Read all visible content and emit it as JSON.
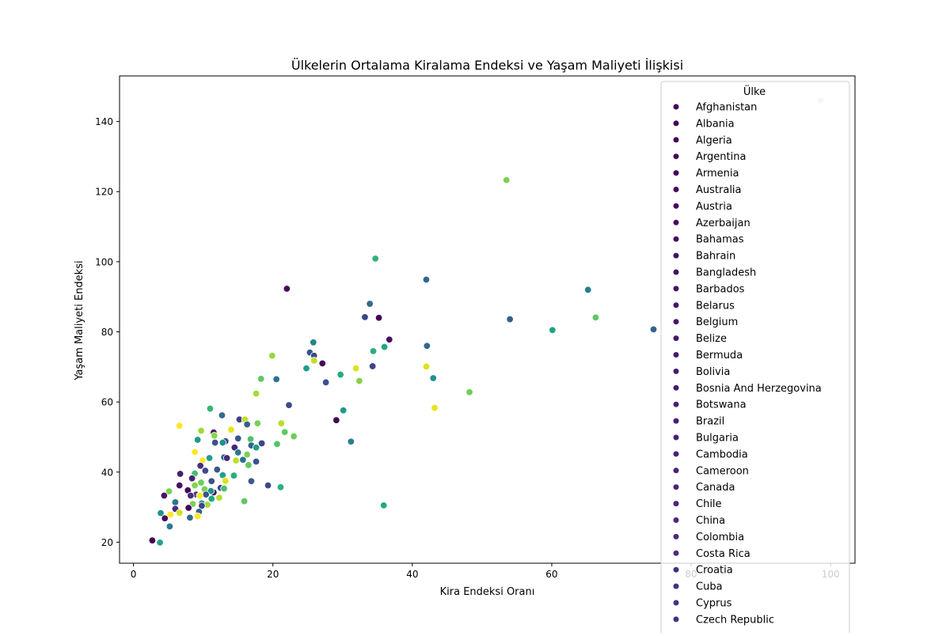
{
  "chart_data": {
    "type": "scatter",
    "title": "Ülkelerin Ortalama Kiralama Endeksi ve Yaşam Maliyeti İlişkisi",
    "xlabel": "Kira Endeksi Oranı",
    "ylabel": "Yaşam Maliyeti Endeksi",
    "xlim": [
      -2,
      103.5
    ],
    "ylim": [
      14,
      153
    ],
    "xticks": [
      0,
      20,
      40,
      60,
      80,
      100
    ],
    "yticks": [
      20,
      40,
      60,
      80,
      100,
      120,
      140
    ],
    "grid": false,
    "colormap": "viridis",
    "legend": {
      "title": "Ülke",
      "placement": "upper-right",
      "entries": [
        {
          "label": "Afghanistan",
          "color": "#440154"
        },
        {
          "label": "Albania",
          "color": "#440256"
        },
        {
          "label": "Algeria",
          "color": "#450457"
        },
        {
          "label": "Argentina",
          "color": "#45065a"
        },
        {
          "label": "Armenia",
          "color": "#46085c"
        },
        {
          "label": "Australia",
          "color": "#460a5d"
        },
        {
          "label": "Austria",
          "color": "#460b5e"
        },
        {
          "label": "Azerbaijan",
          "color": "#470d60"
        },
        {
          "label": "Bahamas",
          "color": "#470e61"
        },
        {
          "label": "Bahrain",
          "color": "#471063"
        },
        {
          "label": "Bangladesh",
          "color": "#471164"
        },
        {
          "label": "Barbados",
          "color": "#481467"
        },
        {
          "label": "Belarus",
          "color": "#481668"
        },
        {
          "label": "Belgium",
          "color": "#481769"
        },
        {
          "label": "Belize",
          "color": "#48186a"
        },
        {
          "label": "Bermuda",
          "color": "#481a6c"
        },
        {
          "label": "Bolivia",
          "color": "#481b6d"
        },
        {
          "label": "Bosnia And Herzegovina",
          "color": "#481d6f"
        },
        {
          "label": "Botswana",
          "color": "#481f70"
        },
        {
          "label": "Brazil",
          "color": "#482071"
        },
        {
          "label": "Bulgaria",
          "color": "#482173"
        },
        {
          "label": "Cambodia",
          "color": "#482374"
        },
        {
          "label": "Cameroon",
          "color": "#482475"
        },
        {
          "label": "Canada",
          "color": "#482576"
        },
        {
          "label": "Chile",
          "color": "#472777"
        },
        {
          "label": "China",
          "color": "#472a7a"
        },
        {
          "label": "Colombia",
          "color": "#472c7a"
        },
        {
          "label": "Costa Rica",
          "color": "#472d7b"
        },
        {
          "label": "Croatia",
          "color": "#472e7c"
        },
        {
          "label": "Cuba",
          "color": "#46307e"
        },
        {
          "label": "Cyprus",
          "color": "#46317e"
        },
        {
          "label": "Czech Republic",
          "color": "#46327e"
        }
      ]
    },
    "points": [
      {
        "x": 98.6,
        "y": 146.0,
        "c": "#d8d4e6"
      },
      {
        "x": 53.5,
        "y": 123.3,
        "c": "#7ad151"
      },
      {
        "x": 34.7,
        "y": 100.9,
        "c": "#2fb47c"
      },
      {
        "x": 42.0,
        "y": 94.9,
        "c": "#31688e"
      },
      {
        "x": 65.2,
        "y": 92.0,
        "c": "#287c8e"
      },
      {
        "x": 22.0,
        "y": 92.3,
        "c": "#46085c"
      },
      {
        "x": 33.9,
        "y": 88.0,
        "c": "#31688e"
      },
      {
        "x": 33.2,
        "y": 84.2,
        "c": "#404387"
      },
      {
        "x": 35.2,
        "y": 84.0,
        "c": "#440256"
      },
      {
        "x": 54.0,
        "y": 83.6,
        "c": "#355f8d"
      },
      {
        "x": 66.3,
        "y": 84.1,
        "c": "#5ec962"
      },
      {
        "x": 60.1,
        "y": 80.5,
        "c": "#20a386"
      },
      {
        "x": 74.6,
        "y": 80.7,
        "c": "#33638d"
      },
      {
        "x": 36.7,
        "y": 77.8,
        "c": "#471063"
      },
      {
        "x": 25.8,
        "y": 77.0,
        "c": "#26828e"
      },
      {
        "x": 42.1,
        "y": 76.0,
        "c": "#31688e"
      },
      {
        "x": 36.0,
        "y": 75.7,
        "c": "#22a884"
      },
      {
        "x": 34.4,
        "y": 74.5,
        "c": "#2ab07f"
      },
      {
        "x": 25.3,
        "y": 74.1,
        "c": "#3b528b"
      },
      {
        "x": 25.9,
        "y": 73.2,
        "c": "#3e4989"
      },
      {
        "x": 19.9,
        "y": 73.2,
        "c": "#95d840"
      },
      {
        "x": 25.9,
        "y": 71.8,
        "c": "#bddf26"
      },
      {
        "x": 27.1,
        "y": 71.0,
        "c": "#46085c"
      },
      {
        "x": 34.3,
        "y": 70.2,
        "c": "#414487"
      },
      {
        "x": 42.0,
        "y": 70.1,
        "c": "#dde318"
      },
      {
        "x": 31.9,
        "y": 69.6,
        "c": "#dde318"
      },
      {
        "x": 24.8,
        "y": 69.6,
        "c": "#1f9e89"
      },
      {
        "x": 29.7,
        "y": 67.8,
        "c": "#25ab82"
      },
      {
        "x": 43.0,
        "y": 66.8,
        "c": "#21918c"
      },
      {
        "x": 20.5,
        "y": 66.5,
        "c": "#2c728e"
      },
      {
        "x": 18.3,
        "y": 66.6,
        "c": "#5ec962"
      },
      {
        "x": 32.4,
        "y": 66.0,
        "c": "#84d44b"
      },
      {
        "x": 27.6,
        "y": 65.6,
        "c": "#3b528b"
      },
      {
        "x": 48.2,
        "y": 62.8,
        "c": "#6ece58"
      },
      {
        "x": 17.6,
        "y": 62.4,
        "c": "#a5db36"
      },
      {
        "x": 22.3,
        "y": 59.1,
        "c": "#3e4989"
      },
      {
        "x": 43.2,
        "y": 58.3,
        "c": "#e5e419"
      },
      {
        "x": 11.0,
        "y": 58.1,
        "c": "#35b779"
      },
      {
        "x": 30.1,
        "y": 57.6,
        "c": "#1f9a8a"
      },
      {
        "x": 12.7,
        "y": 56.2,
        "c": "#31688e"
      },
      {
        "x": 15.2,
        "y": 55.0,
        "c": "#433e85"
      },
      {
        "x": 16.0,
        "y": 55.0,
        "c": "#c2df23"
      },
      {
        "x": 29.1,
        "y": 54.8,
        "c": "#450457"
      },
      {
        "x": 17.8,
        "y": 53.9,
        "c": "#7ad151"
      },
      {
        "x": 21.2,
        "y": 53.9,
        "c": "#b5de2b"
      },
      {
        "x": 16.3,
        "y": 53.6,
        "c": "#365c8d"
      },
      {
        "x": 6.6,
        "y": 53.2,
        "c": "#fde725"
      },
      {
        "x": 14.0,
        "y": 52.1,
        "c": "#e7e419"
      },
      {
        "x": 9.7,
        "y": 51.8,
        "c": "#a0da39"
      },
      {
        "x": 21.7,
        "y": 51.4,
        "c": "#5ec962"
      },
      {
        "x": 11.5,
        "y": 51.3,
        "c": "#48186a"
      },
      {
        "x": 11.6,
        "y": 50.4,
        "c": "#89d548"
      },
      {
        "x": 23.0,
        "y": 50.2,
        "c": "#6ece58"
      },
      {
        "x": 15.0,
        "y": 49.6,
        "c": "#3a548c"
      },
      {
        "x": 16.8,
        "y": 49.4,
        "c": "#4ac16d"
      },
      {
        "x": 9.2,
        "y": 49.2,
        "c": "#1f988b"
      },
      {
        "x": 13.2,
        "y": 48.8,
        "c": "#3f4788"
      },
      {
        "x": 12.8,
        "y": 48.4,
        "c": "#20928c"
      },
      {
        "x": 11.7,
        "y": 48.4,
        "c": "#3b528b"
      },
      {
        "x": 31.2,
        "y": 48.7,
        "c": "#277f8e"
      },
      {
        "x": 18.4,
        "y": 48.2,
        "c": "#414487"
      },
      {
        "x": 20.6,
        "y": 48.0,
        "c": "#52c569"
      },
      {
        "x": 16.9,
        "y": 47.6,
        "c": "#34618d"
      },
      {
        "x": 17.6,
        "y": 47.0,
        "c": "#1f9e89"
      },
      {
        "x": 14.5,
        "y": 47.0,
        "c": "#482475"
      },
      {
        "x": 8.8,
        "y": 45.7,
        "c": "#fde725"
      },
      {
        "x": 15.0,
        "y": 45.6,
        "c": "#2a788e"
      },
      {
        "x": 16.3,
        "y": 45.0,
        "c": "#7ad151"
      },
      {
        "x": 13.0,
        "y": 44.2,
        "c": "#365c8d"
      },
      {
        "x": 10.9,
        "y": 44.0,
        "c": "#1f9e89"
      },
      {
        "x": 13.4,
        "y": 44.0,
        "c": "#472777"
      },
      {
        "x": 15.7,
        "y": 43.5,
        "c": "#2c728e"
      },
      {
        "x": 14.7,
        "y": 43.3,
        "c": "#bddf26"
      },
      {
        "x": 9.9,
        "y": 43.3,
        "c": "#fde725"
      },
      {
        "x": 17.6,
        "y": 43.0,
        "c": "#3b528b"
      },
      {
        "x": 16.5,
        "y": 42.0,
        "c": "#5ec962"
      },
      {
        "x": 9.6,
        "y": 41.8,
        "c": "#46307e"
      },
      {
        "x": 12.0,
        "y": 40.7,
        "c": "#3a548c"
      },
      {
        "x": 10.3,
        "y": 40.4,
        "c": "#3e4989"
      },
      {
        "x": 6.7,
        "y": 39.5,
        "c": "#481f70"
      },
      {
        "x": 8.8,
        "y": 39.6,
        "c": "#44bf70"
      },
      {
        "x": 14.4,
        "y": 39.0,
        "c": "#27ad81"
      },
      {
        "x": 12.8,
        "y": 39.1,
        "c": "#1fa088"
      },
      {
        "x": 8.4,
        "y": 38.2,
        "c": "#482173"
      },
      {
        "x": 11.2,
        "y": 37.4,
        "c": "#3b528b"
      },
      {
        "x": 13.2,
        "y": 37.5,
        "c": "#dde318"
      },
      {
        "x": 16.9,
        "y": 37.4,
        "c": "#365c8d"
      },
      {
        "x": 9.7,
        "y": 37.0,
        "c": "#6ece58"
      },
      {
        "x": 8.8,
        "y": 36.2,
        "c": "#84d44b"
      },
      {
        "x": 6.6,
        "y": 36.2,
        "c": "#471164"
      },
      {
        "x": 19.3,
        "y": 36.2,
        "c": "#3e4989"
      },
      {
        "x": 21.1,
        "y": 35.7,
        "c": "#2ab07f"
      },
      {
        "x": 12.5,
        "y": 35.5,
        "c": "#3f4788"
      },
      {
        "x": 13.0,
        "y": 35.3,
        "c": "#4ac16d"
      },
      {
        "x": 7.8,
        "y": 34.8,
        "c": "#450457"
      },
      {
        "x": 10.2,
        "y": 35.1,
        "c": "#7ad151"
      },
      {
        "x": 5.1,
        "y": 34.5,
        "c": "#7ad151"
      },
      {
        "x": 11.5,
        "y": 34.2,
        "c": "#48186a"
      },
      {
        "x": 11.1,
        "y": 34.6,
        "c": "#20928c"
      },
      {
        "x": 9.0,
        "y": 33.6,
        "c": "#424086"
      },
      {
        "x": 10.4,
        "y": 33.6,
        "c": "#39568c"
      },
      {
        "x": 8.2,
        "y": 33.3,
        "c": "#472d7b"
      },
      {
        "x": 4.4,
        "y": 33.3,
        "c": "#481467"
      },
      {
        "x": 12.3,
        "y": 32.7,
        "c": "#b5de2b"
      },
      {
        "x": 9.5,
        "y": 33.3,
        "c": "#fde725"
      },
      {
        "x": 11.2,
        "y": 32.4,
        "c": "#20a386"
      },
      {
        "x": 15.9,
        "y": 31.7,
        "c": "#5ec962"
      },
      {
        "x": 6.0,
        "y": 31.4,
        "c": "#2a788e"
      },
      {
        "x": 9.8,
        "y": 31.1,
        "c": "#1f9e89"
      },
      {
        "x": 8.5,
        "y": 30.9,
        "c": "#7ad151"
      },
      {
        "x": 10.6,
        "y": 30.7,
        "c": "#a0da39"
      },
      {
        "x": 9.8,
        "y": 30.4,
        "c": "#414487"
      },
      {
        "x": 35.9,
        "y": 30.5,
        "c": "#22a884"
      },
      {
        "x": 7.9,
        "y": 29.8,
        "c": "#440256"
      },
      {
        "x": 6.0,
        "y": 29.5,
        "c": "#472d7b"
      },
      {
        "x": 9.4,
        "y": 28.7,
        "c": "#33638d"
      },
      {
        "x": 6.6,
        "y": 28.4,
        "c": "#d2e21b"
      },
      {
        "x": 3.9,
        "y": 28.3,
        "c": "#21918c"
      },
      {
        "x": 5.3,
        "y": 27.9,
        "c": "#fde725"
      },
      {
        "x": 9.2,
        "y": 27.4,
        "c": "#fde725"
      },
      {
        "x": 8.1,
        "y": 27.0,
        "c": "#31688e"
      },
      {
        "x": 4.5,
        "y": 26.8,
        "c": "#46085c"
      },
      {
        "x": 5.2,
        "y": 24.5,
        "c": "#287c8e"
      },
      {
        "x": 2.7,
        "y": 20.5,
        "c": "#440154"
      },
      {
        "x": 3.8,
        "y": 19.9,
        "c": "#21a685"
      }
    ]
  }
}
